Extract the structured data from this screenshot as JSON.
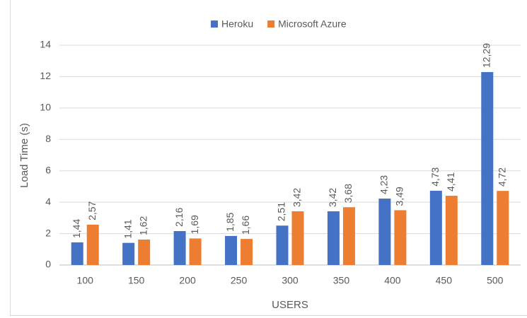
{
  "chart_data": {
    "type": "bar",
    "x_label": "USERS",
    "y_label": "Load Time (s)",
    "categories": [
      "100",
      "150",
      "200",
      "250",
      "300",
      "350",
      "400",
      "450",
      "500"
    ],
    "series": [
      {
        "name": "Heroku",
        "color": "#4472c4",
        "values": [
          1.44,
          1.41,
          2.16,
          1.85,
          2.51,
          3.42,
          4.23,
          4.73,
          12.29
        ],
        "value_labels": [
          "1,44",
          "1,41",
          "2,16",
          "1,85",
          "2,51",
          "3,42",
          "4,23",
          "4,73",
          "12,29"
        ]
      },
      {
        "name": "Microsoft Azure",
        "color": "#ed7d31",
        "values": [
          2.57,
          1.62,
          1.69,
          1.66,
          3.42,
          3.68,
          3.49,
          4.41,
          4.72
        ],
        "value_labels": [
          "2,57",
          "1,62",
          "1,69",
          "1,66",
          "3,42",
          "3,68",
          "3,49",
          "4,41",
          "4,72"
        ]
      }
    ],
    "ylim": [
      0,
      14
    ],
    "yticks": [
      0,
      2,
      4,
      6,
      8,
      10,
      12,
      14
    ],
    "grid": true,
    "legend": "top"
  }
}
